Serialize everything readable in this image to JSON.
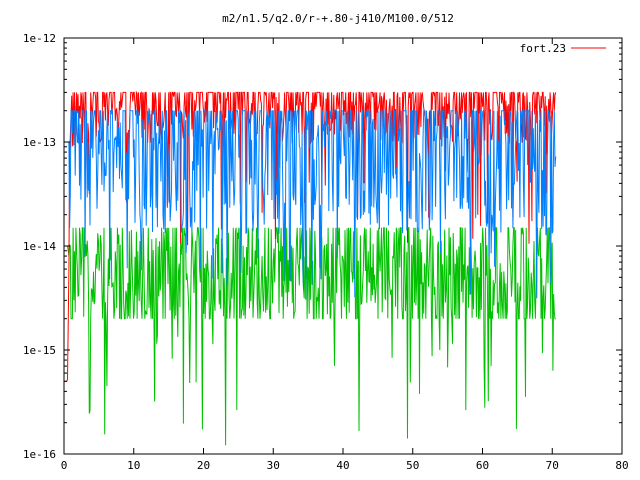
{
  "chart_data": {
    "type": "line",
    "title": "m2/n1.5/q2.0/r-+.80-j410/M100.0/512",
    "xlabel": "",
    "ylabel": "",
    "xlim": [
      0,
      80
    ],
    "ylim": [
      1e-16,
      1e-12
    ],
    "yscale": "log",
    "x_ticks": [
      0,
      10,
      20,
      30,
      40,
      50,
      60,
      70,
      80
    ],
    "x_tick_labels": [
      "0",
      "10",
      "20",
      "30",
      "40",
      "50",
      "60",
      "70",
      "80"
    ],
    "y_ticks": [
      1e-16,
      1e-15,
      1e-14,
      1e-13,
      1e-12
    ],
    "y_tick_labels": [
      "1e-16",
      "1e-15",
      "1e-14",
      "1e-13",
      "1e-12"
    ],
    "grid": false,
    "legend": {
      "position": "top-right",
      "entries": [
        "fort.23"
      ]
    },
    "series": [
      {
        "name": "fort.23",
        "color": "#ff0000",
        "style": "line",
        "x_range": [
          0,
          70.5
        ],
        "typical_range": [
          8e-14,
          3e-13
        ],
        "occasional_dips_to": 1e-14,
        "x": [
          0.5,
          1,
          5,
          10,
          15,
          20,
          25,
          30,
          35,
          40,
          45,
          50,
          55,
          60,
          65,
          70
        ],
        "values": [
          5e-16,
          2e-13,
          2.5e-13,
          2.5e-13,
          2.4e-13,
          2.6e-13,
          2.5e-13,
          2.5e-13,
          2.4e-13,
          2.5e-13,
          2.6e-13,
          2.4e-13,
          2.5e-13,
          2.5e-13,
          2.4e-13,
          2.5e-13
        ]
      },
      {
        "name": "",
        "color": "#0080ff",
        "style": "line",
        "x_range": [
          0,
          70.5
        ],
        "typical_range": [
          1e-14,
          2e-13
        ],
        "occasional_dips_to": 3e-15,
        "x": [
          0.5,
          1,
          5,
          10,
          15,
          20,
          25,
          30,
          35,
          40,
          45,
          50,
          55,
          60,
          65,
          70
        ],
        "values": [
          1e-13,
          1e-13,
          1.2e-13,
          1.1e-13,
          1e-13,
          1.2e-13,
          1.1e-13,
          1e-13,
          1.1e-13,
          1.2e-13,
          1e-13,
          1.1e-13,
          1.2e-13,
          1e-13,
          1.1e-13,
          1e-13
        ]
      },
      {
        "name": "",
        "color": "#00c000",
        "style": "line",
        "x_range": [
          0,
          70.5
        ],
        "typical_range": [
          2e-15,
          1.5e-14
        ],
        "occasional_dips_to": 1.2e-16,
        "x": [
          0.5,
          1,
          5,
          10,
          15,
          20,
          25,
          30,
          35,
          40,
          45,
          50,
          55,
          60,
          65,
          70
        ],
        "values": [
          1e-14,
          6e-15,
          5e-15,
          5e-15,
          6e-15,
          5e-15,
          5e-15,
          6e-15,
          5e-15,
          5e-15,
          6e-15,
          5e-15,
          5e-15,
          6e-15,
          5e-15,
          5e-15
        ]
      }
    ]
  }
}
